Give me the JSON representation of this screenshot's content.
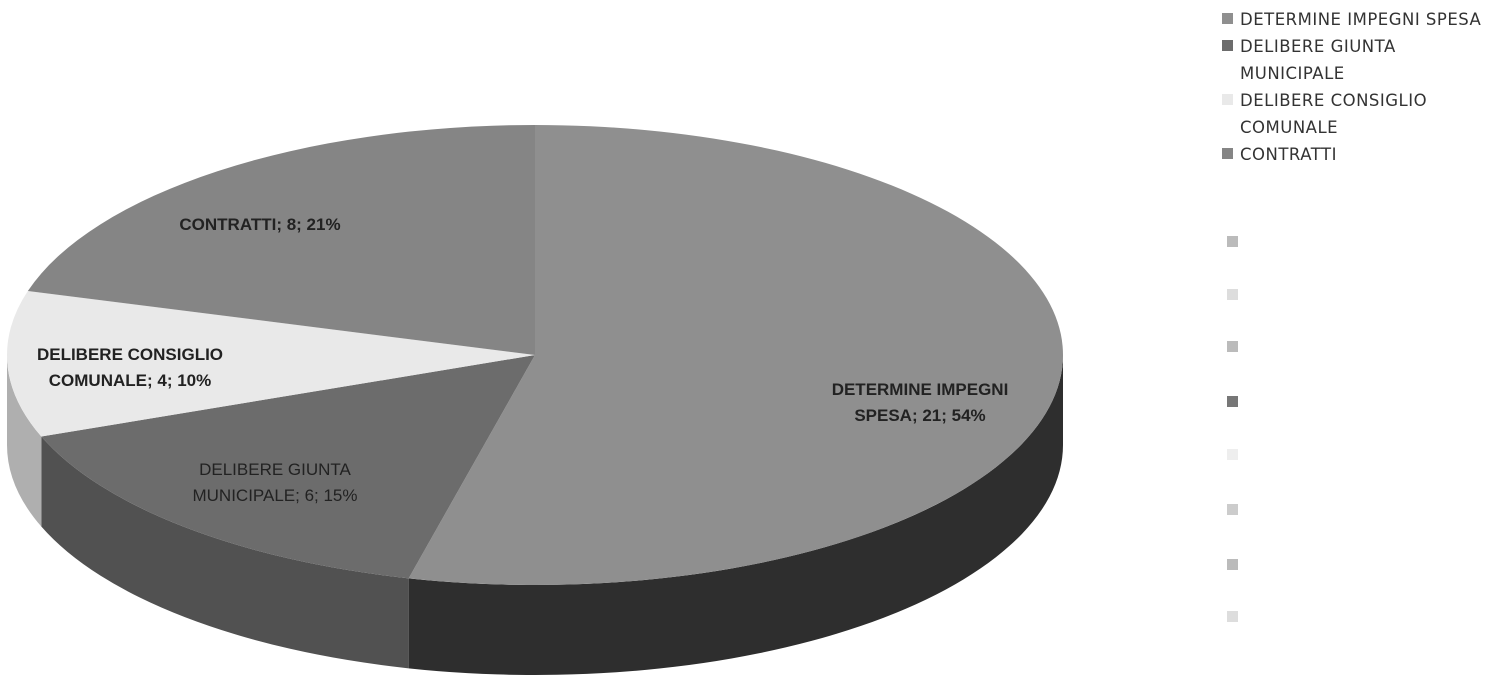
{
  "chart_data": {
    "type": "pie3d",
    "categories": [
      "DETERMINE IMPEGNI SPESA",
      "DELIBERE GIUNTA MUNICIPALE",
      "DELIBERE CONSIGLIO COMUNALE",
      "CONTRATTI"
    ],
    "values": [
      21,
      6,
      4,
      8
    ],
    "value_labels": [
      "DETERMINE IMPEGNI SPESA; 21; 54%",
      "DELIBERE GIUNTA MUNICIPALE; 6; 15%",
      "DELIBERE CONSIGLIO COMUNALE; 4; 10%",
      "CONTRATTI; 8; 21%"
    ],
    "colors": [
      "#8f8f8f",
      "#6c6c6c",
      "#e9e9e9",
      "#858585"
    ],
    "legend": "top-right"
  }
}
